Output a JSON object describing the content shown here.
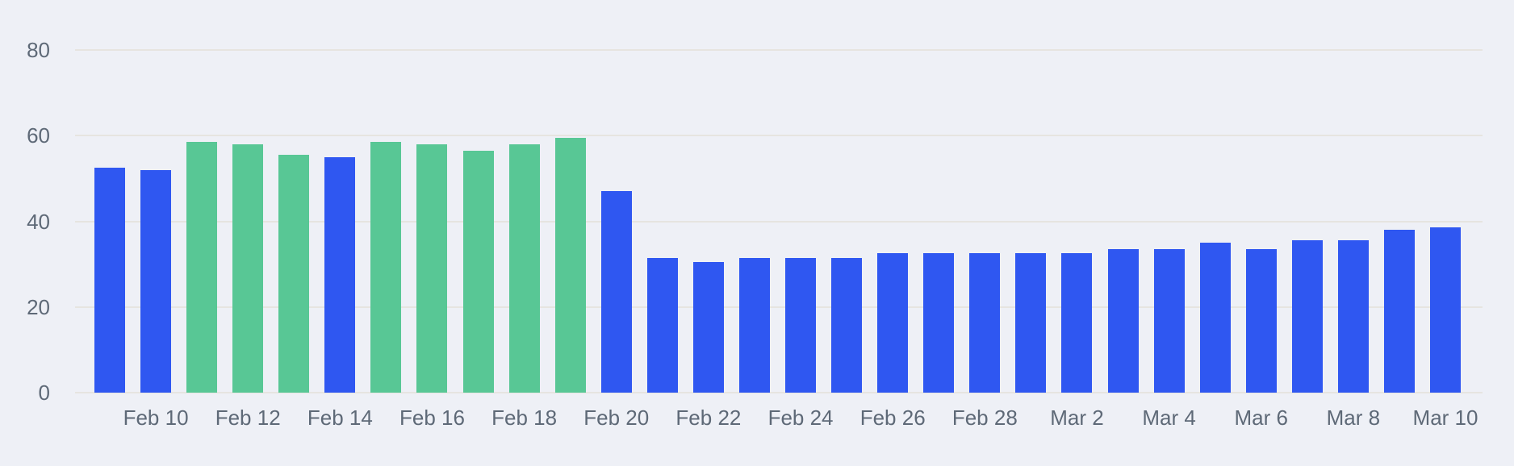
{
  "chart_data": {
    "type": "bar",
    "title": "",
    "xlabel": "",
    "ylabel": "",
    "categories": [
      "Feb 9",
      "Feb 10",
      "Feb 11",
      "Feb 12",
      "Feb 13",
      "Feb 14",
      "Feb 15",
      "Feb 16",
      "Feb 17",
      "Feb 18",
      "Feb 19",
      "Feb 20",
      "Feb 21",
      "Feb 22",
      "Feb 23",
      "Feb 24",
      "Feb 25",
      "Feb 26",
      "Feb 27",
      "Feb 28",
      "Mar 1",
      "Mar 2",
      "Mar 3",
      "Mar 4",
      "Mar 5",
      "Mar 6",
      "Mar 7",
      "Mar 8",
      "Mar 9",
      "Mar 10"
    ],
    "values": [
      52.5,
      52,
      58.5,
      58,
      55.5,
      55,
      58.5,
      58,
      56.5,
      58,
      59.5,
      47,
      31.5,
      30.5,
      31.5,
      31.5,
      31.5,
      32.5,
      32.5,
      32.5,
      32.5,
      32.5,
      33.5,
      33.5,
      35,
      33.5,
      35.5,
      35.5,
      38,
      38.5
    ],
    "point_colors": [
      "blue",
      "blue",
      "green",
      "green",
      "green",
      "blue",
      "green",
      "green",
      "green",
      "green",
      "green",
      "blue",
      "blue",
      "blue",
      "blue",
      "blue",
      "blue",
      "blue",
      "blue",
      "blue",
      "blue",
      "blue",
      "blue",
      "blue",
      "blue",
      "blue",
      "blue",
      "blue",
      "blue",
      "blue"
    ],
    "series_colors": {
      "blue": "#2f57f1",
      "green": "#58c795"
    },
    "ylim": [
      0,
      80
    ],
    "yticks": [
      0,
      20,
      40,
      60,
      80
    ],
    "xtick_labels": [
      "Feb 10",
      "Feb 12",
      "Feb 14",
      "Feb 16",
      "Feb 18",
      "Feb 20",
      "Feb 22",
      "Feb 24",
      "Feb 26",
      "Feb 28",
      "Mar 2",
      "Mar 4",
      "Mar 6",
      "Mar 8",
      "Mar 10"
    ],
    "xtick_shown_every": 2,
    "grid": "horizontal",
    "legend": "none"
  },
  "colors": {
    "background": "#eef0f6",
    "gridline": "#e6e4e0",
    "axis_text": "#5e6977"
  }
}
